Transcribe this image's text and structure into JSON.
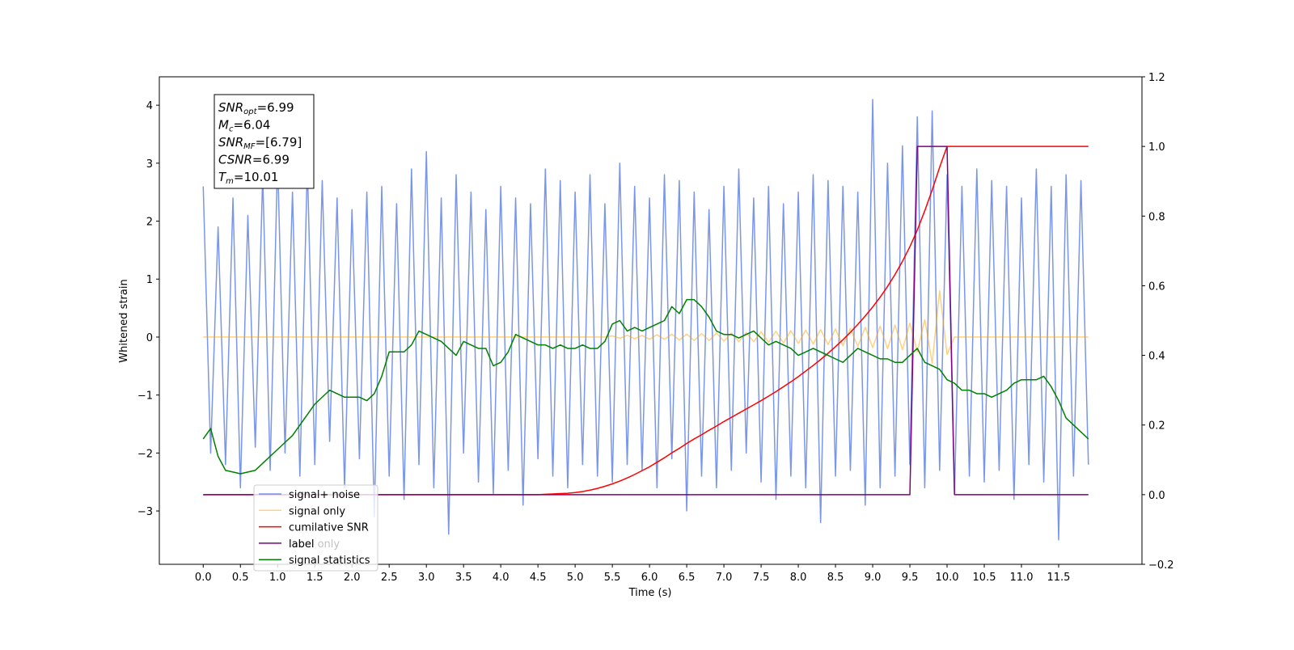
{
  "chart_data": {
    "type": "line",
    "xlabel": "Time (s)",
    "ylabel": "Whitened strain",
    "xlim": [
      -0.59,
      12.62
    ],
    "ylim": [
      -3.92,
      4.49
    ],
    "y2lim": [
      -0.2,
      1.2
    ],
    "xticks": [
      {
        "value": 0,
        "label": "0.0"
      },
      0.5,
      {
        "value": 1,
        "label": "1.0"
      },
      1.5,
      {
        "value": 2,
        "label": "2.0"
      },
      2.5,
      {
        "value": 3,
        "label": "3.0"
      },
      3.5,
      {
        "value": 4,
        "label": "4.0"
      },
      4.5,
      {
        "value": 5,
        "label": "5.0"
      },
      5.5,
      {
        "value": 6,
        "label": "6.0"
      },
      6.5,
      {
        "value": 7,
        "label": "7.0"
      },
      7.5,
      {
        "value": 8,
        "label": "8.0"
      },
      8.5,
      {
        "value": 9,
        "label": "9.0"
      },
      9.5,
      {
        "value": 10,
        "label": "10.0"
      },
      10.5,
      {
        "value": 11,
        "label": "11.0"
      },
      11.5
    ],
    "yticks": [
      {
        "value": -3,
        "label": "−3"
      },
      {
        "value": -2,
        "label": "−2"
      },
      {
        "value": -1,
        "label": "−1"
      },
      0,
      1,
      2,
      3,
      4
    ],
    "y2ticks": [
      {
        "value": -0.2,
        "label": "−0.2"
      },
      {
        "value": 0,
        "label": "0.0"
      },
      0.2,
      0.4,
      0.6,
      0.8,
      {
        "value": 1,
        "label": "1.0"
      },
      1.2
    ],
    "legend": "lower left",
    "legend_overlay_text": "label only",
    "textbox": [
      {
        "main": "SNR",
        "sub": "opt",
        "rest": "=6.99"
      },
      {
        "main": "M",
        "sub": "c",
        "rest": "=6.04"
      },
      {
        "main": "SNR",
        "sub": "MF",
        "rest": "=[6.79]"
      },
      {
        "main": "CSNR",
        "rest": "=6.99"
      },
      {
        "main": "T",
        "sub": "m",
        "rest": "=10.01"
      }
    ],
    "x": [
      0,
      0.1,
      0.2,
      0.3,
      0.4,
      0.5,
      0.6,
      0.7,
      0.8,
      0.9,
      1,
      1.1,
      1.2,
      1.3,
      1.4,
      1.5,
      1.6,
      1.7,
      1.8,
      1.9,
      2,
      2.1,
      2.2,
      2.3,
      2.4,
      2.5,
      2.6,
      2.7,
      2.8,
      2.9,
      3,
      3.1,
      3.2,
      3.3,
      3.4,
      3.5,
      3.6,
      3.7,
      3.8,
      3.9,
      4,
      4.1,
      4.2,
      4.3,
      4.4,
      4.5,
      4.6,
      4.7,
      4.8,
      4.9,
      5,
      5.1,
      5.2,
      5.3,
      5.4,
      5.5,
      5.6,
      5.7,
      5.8,
      5.9,
      6,
      6.1,
      6.2,
      6.3,
      6.4,
      6.5,
      6.6,
      6.7,
      6.8,
      6.9,
      7,
      7.1,
      7.2,
      7.3,
      7.4,
      7.5,
      7.6,
      7.7,
      7.8,
      7.9,
      8,
      8.1,
      8.2,
      8.3,
      8.4,
      8.5,
      8.6,
      8.7,
      8.8,
      8.9,
      9,
      9.1,
      9.2,
      9.3,
      9.4,
      9.5,
      9.6,
      9.7,
      9.8,
      9.9,
      10,
      10.1,
      10.2,
      10.3,
      10.4,
      10.5,
      10.6,
      10.7,
      10.8,
      10.9,
      11,
      11.1,
      11.2,
      11.3,
      11.4,
      11.5,
      11.6,
      11.7,
      11.8,
      11.9
    ],
    "series": [
      {
        "name": "signal+ noise",
        "color": "#4169e1",
        "alpha": 0.7,
        "axis": "y",
        "values": [
          2.6,
          -2.0,
          1.9,
          -2.2,
          2.4,
          -2.6,
          2.1,
          -1.9,
          2.8,
          -2.3,
          3.1,
          -2.0,
          2.5,
          -2.4,
          3.0,
          -2.2,
          2.7,
          -1.8,
          2.4,
          -2.6,
          2.2,
          -2.1,
          2.5,
          -3.1,
          2.6,
          -2.4,
          2.3,
          -2.8,
          2.9,
          -2.2,
          3.2,
          -2.6,
          2.4,
          -3.4,
          2.8,
          -2.0,
          2.5,
          -2.5,
          2.2,
          -2.7,
          2.6,
          -2.3,
          2.4,
          -2.9,
          2.3,
          -2.1,
          2.9,
          -2.4,
          2.7,
          -2.6,
          2.5,
          -2.2,
          2.8,
          -2.4,
          2.3,
          -2.5,
          3.0,
          -2.2,
          2.6,
          -2.3,
          2.4,
          -2.6,
          2.8,
          -2.1,
          2.7,
          -3.0,
          2.5,
          -2.4,
          2.2,
          -2.6,
          2.6,
          -2.3,
          2.9,
          -2.0,
          2.4,
          -2.5,
          2.6,
          -2.8,
          2.3,
          -2.4,
          2.5,
          -2.6,
          2.8,
          -3.2,
          2.7,
          -2.4,
          2.6,
          -2.3,
          2.5,
          -2.9,
          4.1,
          -2.6,
          3.0,
          -2.4,
          3.3,
          -2.2,
          3.8,
          -2.6,
          3.9,
          -2.3,
          2.8,
          -2.7,
          2.6,
          -2.4,
          2.9,
          -2.5,
          2.7,
          -2.3,
          2.6,
          -2.8,
          2.4,
          -2.2,
          2.9,
          -2.5,
          2.6,
          -3.5,
          2.8,
          -2.4,
          2.7,
          -2.2
        ]
      },
      {
        "name": "signal only",
        "color": "#ffa500",
        "alpha": 0.5,
        "axis": "y",
        "values": [
          0,
          0,
          0,
          0,
          0,
          0,
          0,
          0,
          0,
          0,
          0,
          0,
          0,
          0,
          0,
          0,
          0,
          0,
          0,
          0,
          0,
          0,
          0,
          0,
          0,
          0,
          0,
          0,
          0,
          0,
          0,
          0,
          0,
          0,
          0,
          0,
          0,
          0,
          0,
          0,
          0,
          0,
          0,
          0,
          0,
          0,
          0,
          0,
          0,
          0,
          0,
          0,
          0,
          0,
          0,
          0.02,
          -0.02,
          0.03,
          -0.03,
          0.03,
          -0.04,
          0.04,
          -0.04,
          0.05,
          -0.05,
          0.05,
          -0.06,
          0.06,
          -0.06,
          0.07,
          -0.07,
          0.07,
          -0.08,
          0.08,
          -0.08,
          0.09,
          -0.09,
          0.1,
          -0.1,
          0.11,
          -0.11,
          0.12,
          -0.12,
          0.13,
          -0.13,
          0.14,
          -0.15,
          0.15,
          -0.16,
          0.17,
          -0.18,
          0.19,
          -0.2,
          0.21,
          -0.22,
          0.24,
          -0.26,
          0.3,
          -0.45,
          0.8,
          -0.3,
          0,
          0,
          0,
          0,
          0,
          0,
          0,
          0,
          0,
          0,
          0,
          0,
          0,
          0,
          0,
          0,
          0,
          0,
          0
        ]
      },
      {
        "name": "cumilative SNR",
        "color": "#ff0000",
        "alpha": 1,
        "axis": "y2",
        "values": [
          0,
          0,
          0,
          0,
          0,
          0,
          0,
          0,
          0,
          0,
          0,
          0,
          0,
          0,
          0,
          0,
          0,
          0,
          0,
          0,
          0,
          0,
          0,
          0,
          0,
          0,
          0,
          0,
          0,
          0,
          0,
          0,
          0,
          0,
          0,
          0,
          0,
          0,
          0,
          0,
          0,
          0,
          0,
          0,
          0,
          0,
          0.001,
          0.002,
          0.003,
          0.004,
          0.006,
          0.009,
          0.013,
          0.018,
          0.024,
          0.031,
          0.039,
          0.048,
          0.058,
          0.069,
          0.08,
          0.093,
          0.106,
          0.12,
          0.133,
          0.147,
          0.16,
          0.172,
          0.185,
          0.197,
          0.21,
          0.222,
          0.234,
          0.246,
          0.258,
          0.27,
          0.283,
          0.296,
          0.31,
          0.324,
          0.339,
          0.355,
          0.371,
          0.388,
          0.406,
          0.425,
          0.445,
          0.466,
          0.489,
          0.513,
          0.539,
          0.567,
          0.598,
          0.632,
          0.67,
          0.712,
          0.76,
          0.815,
          0.875,
          0.94,
          1,
          1,
          1,
          1,
          1,
          1,
          1,
          1,
          1,
          1,
          1,
          1,
          1,
          1,
          1,
          1,
          1,
          1,
          1,
          1
        ]
      },
      {
        "name": "label",
        "color": "#800080",
        "alpha": 1,
        "axis": "y2",
        "values": [
          0,
          0,
          0,
          0,
          0,
          0,
          0,
          0,
          0,
          0,
          0,
          0,
          0,
          0,
          0,
          0,
          0,
          0,
          0,
          0,
          0,
          0,
          0,
          0,
          0,
          0,
          0,
          0,
          0,
          0,
          0,
          0,
          0,
          0,
          0,
          0,
          0,
          0,
          0,
          0,
          0,
          0,
          0,
          0,
          0,
          0,
          0,
          0,
          0,
          0,
          0,
          0,
          0,
          0,
          0,
          0,
          0,
          0,
          0,
          0,
          0,
          0,
          0,
          0,
          0,
          0,
          0,
          0,
          0,
          0,
          0,
          0,
          0,
          0,
          0,
          0,
          0,
          0,
          0,
          0,
          0,
          0,
          0,
          0,
          0,
          0,
          0,
          0,
          0,
          0,
          0,
          0,
          0,
          0,
          0,
          0,
          1,
          1,
          1,
          1,
          1,
          0,
          0,
          0,
          0,
          0,
          0,
          0,
          0,
          0,
          0,
          0,
          0,
          0,
          0,
          0,
          0,
          0,
          0,
          0
        ]
      },
      {
        "name": "signal statistics",
        "color": "#008000",
        "alpha": 1,
        "axis": "y2",
        "values": [
          0.16,
          0.19,
          0.11,
          0.07,
          0.065,
          0.06,
          0.065,
          0.07,
          0.09,
          0.11,
          0.13,
          0.15,
          0.17,
          0.2,
          0.23,
          0.26,
          0.28,
          0.3,
          0.29,
          0.28,
          0.28,
          0.28,
          0.27,
          0.29,
          0.34,
          0.41,
          0.41,
          0.41,
          0.43,
          0.47,
          0.46,
          0.45,
          0.44,
          0.42,
          0.4,
          0.44,
          0.43,
          0.42,
          0.42,
          0.37,
          0.38,
          0.41,
          0.46,
          0.45,
          0.44,
          0.43,
          0.43,
          0.42,
          0.43,
          0.42,
          0.42,
          0.43,
          0.42,
          0.42,
          0.44,
          0.49,
          0.5,
          0.47,
          0.48,
          0.47,
          0.48,
          0.49,
          0.5,
          0.54,
          0.52,
          0.56,
          0.56,
          0.54,
          0.51,
          0.47,
          0.46,
          0.46,
          0.45,
          0.46,
          0.47,
          0.45,
          0.43,
          0.44,
          0.43,
          0.42,
          0.4,
          0.41,
          0.42,
          0.41,
          0.4,
          0.39,
          0.38,
          0.4,
          0.42,
          0.41,
          0.4,
          0.39,
          0.39,
          0.38,
          0.38,
          0.4,
          0.42,
          0.38,
          0.37,
          0.36,
          0.33,
          0.32,
          0.3,
          0.3,
          0.29,
          0.29,
          0.28,
          0.29,
          0.3,
          0.32,
          0.33,
          0.33,
          0.33,
          0.34,
          0.31,
          0.27,
          0.22,
          0.2,
          0.18,
          0.16
        ]
      }
    ]
  }
}
